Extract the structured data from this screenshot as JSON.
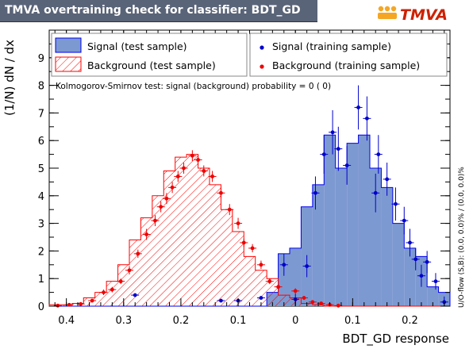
{
  "title": "TMVA overtraining check for classifier: BDT_GD",
  "logo_text": "TMVA",
  "colors": {
    "title_bg": "#5a6478",
    "signal_fill": "#7d99d1",
    "signal_line": "#0000ee",
    "background_line": "#ff0000",
    "signal_points": "#0000cc",
    "background_points": "#ee0000"
  },
  "ks_text": "Kolmogorov-Smirnov test: signal (background) probability =     0 (     0)",
  "overflow_text": "U/O-flow (S,B): (0.0, 0.0)% / (0.0, 0.0)%",
  "chart_data": {
    "type": "bar",
    "title": "TMVA overtraining check for classifier: BDT_GD",
    "xlabel": "BDT_GD response",
    "ylabel": "(1/N) dN / dx",
    "xlim": [
      -0.43,
      0.27
    ],
    "ylim": [
      0,
      10
    ],
    "x_reversed": true,
    "x_ticks": [
      -0.4,
      -0.3,
      -0.2,
      -0.1,
      0,
      0.1,
      0.2
    ],
    "x_tick_labels": [
      "0.4",
      "0.3",
      "0.2",
      "0.1",
      "0",
      "0.1",
      "0.2"
    ],
    "y_ticks": [
      0,
      1,
      2,
      3,
      4,
      5,
      6,
      7,
      8,
      9
    ],
    "bin_edges": [
      -0.43,
      -0.41,
      -0.39,
      -0.37,
      -0.35,
      -0.33,
      -0.31,
      -0.29,
      -0.27,
      -0.25,
      -0.23,
      -0.21,
      -0.19,
      -0.17,
      -0.15,
      -0.13,
      -0.11,
      -0.09,
      -0.07,
      -0.05,
      -0.03,
      -0.01,
      0.01,
      0.03,
      0.05,
      0.07,
      0.09,
      0.11,
      0.13,
      0.15,
      0.17,
      0.19,
      0.21,
      0.23,
      0.25,
      0.27
    ],
    "legend": [
      {
        "label": "Signal (test sample)",
        "style": "filled"
      },
      {
        "label": "Background (test sample)",
        "style": "hatched"
      },
      {
        "label": "Signal (training sample)",
        "style": "points-blue"
      },
      {
        "label": "Background (training sample)",
        "style": "points-red"
      }
    ],
    "legend_placement": "top",
    "series": [
      {
        "name": "Signal (test sample)",
        "values": [
          0,
          0,
          0,
          0,
          0,
          0,
          0,
          0,
          0,
          0,
          0,
          0,
          0,
          0,
          0,
          0,
          0,
          0,
          0,
          0.5,
          1.9,
          2.1,
          3.6,
          4.4,
          6.2,
          5.0,
          5.9,
          6.2,
          5.0,
          4.3,
          3.0,
          2.1,
          1.8,
          0.7,
          0.5
        ]
      },
      {
        "name": "Background (test sample)",
        "values": [
          0.05,
          0.05,
          0.1,
          0.3,
          0.5,
          0.9,
          1.5,
          2.4,
          3.2,
          4.0,
          4.9,
          5.4,
          5.5,
          5.0,
          4.4,
          3.5,
          2.7,
          1.8,
          1.3,
          1.0,
          0.4,
          0.3,
          0.1,
          0.05,
          0,
          0,
          0,
          0,
          0,
          0,
          0,
          0,
          0,
          0,
          0
        ]
      },
      {
        "name": "Signal (training sample)",
        "points": [
          {
            "x": -0.28,
            "y": 0.4,
            "e": 0.0
          },
          {
            "x": -0.13,
            "y": 0.2,
            "e": 0.0
          },
          {
            "x": -0.1,
            "y": 0.2,
            "e": 0.0
          },
          {
            "x": -0.06,
            "y": 0.3,
            "e": 0.0
          },
          {
            "x": 0.0,
            "y": 0.25,
            "e": 0.2
          },
          {
            "x": -0.02,
            "y": 1.5,
            "e": 0.4
          },
          {
            "x": 0.02,
            "y": 1.45,
            "e": 0.4
          },
          {
            "x": 0.035,
            "y": 4.1,
            "e": 0.6
          },
          {
            "x": 0.05,
            "y": 5.5,
            "e": 0.7
          },
          {
            "x": 0.065,
            "y": 6.3,
            "e": 0.8
          },
          {
            "x": 0.075,
            "y": 5.7,
            "e": 0.8
          },
          {
            "x": 0.09,
            "y": 5.1,
            "e": 0.7
          },
          {
            "x": 0.11,
            "y": 7.2,
            "e": 0.8
          },
          {
            "x": 0.125,
            "y": 6.8,
            "e": 0.8
          },
          {
            "x": 0.14,
            "y": 4.1,
            "e": 0.7
          },
          {
            "x": 0.145,
            "y": 5.5,
            "e": 0.7
          },
          {
            "x": 0.16,
            "y": 4.6,
            "e": 0.6
          },
          {
            "x": 0.175,
            "y": 3.7,
            "e": 0.6
          },
          {
            "x": 0.19,
            "y": 3.1,
            "e": 0.5
          },
          {
            "x": 0.2,
            "y": 2.3,
            "e": 0.5
          },
          {
            "x": 0.21,
            "y": 1.7,
            "e": 0.4
          },
          {
            "x": 0.22,
            "y": 1.1,
            "e": 0.4
          },
          {
            "x": 0.23,
            "y": 1.6,
            "e": 0.4
          },
          {
            "x": 0.245,
            "y": 0.9,
            "e": 0.3
          },
          {
            "x": 0.26,
            "y": 0.15,
            "e": 0.2
          }
        ]
      },
      {
        "name": "Background (training sample)",
        "points": [
          {
            "x": -0.415,
            "y": 0.02,
            "e": 0.0
          },
          {
            "x": -0.395,
            "y": 0.05,
            "e": 0.0
          },
          {
            "x": -0.375,
            "y": 0.08,
            "e": 0.0
          },
          {
            "x": -0.355,
            "y": 0.2,
            "e": 0.05
          },
          {
            "x": -0.335,
            "y": 0.5,
            "e": 0.1
          },
          {
            "x": -0.32,
            "y": 0.6,
            "e": 0.1
          },
          {
            "x": -0.305,
            "y": 0.9,
            "e": 0.1
          },
          {
            "x": -0.29,
            "y": 1.3,
            "e": 0.15
          },
          {
            "x": -0.275,
            "y": 1.9,
            "e": 0.15
          },
          {
            "x": -0.26,
            "y": 2.6,
            "e": 0.2
          },
          {
            "x": -0.245,
            "y": 3.1,
            "e": 0.2
          },
          {
            "x": -0.235,
            "y": 3.6,
            "e": 0.2
          },
          {
            "x": -0.225,
            "y": 3.9,
            "e": 0.2
          },
          {
            "x": -0.215,
            "y": 4.3,
            "e": 0.2
          },
          {
            "x": -0.205,
            "y": 4.7,
            "e": 0.2
          },
          {
            "x": -0.195,
            "y": 5.0,
            "e": 0.2
          },
          {
            "x": -0.18,
            "y": 5.45,
            "e": 0.2
          },
          {
            "x": -0.17,
            "y": 5.3,
            "e": 0.2
          },
          {
            "x": -0.16,
            "y": 4.9,
            "e": 0.2
          },
          {
            "x": -0.145,
            "y": 4.7,
            "e": 0.2
          },
          {
            "x": -0.13,
            "y": 4.1,
            "e": 0.2
          },
          {
            "x": -0.115,
            "y": 3.5,
            "e": 0.2
          },
          {
            "x": -0.1,
            "y": 3.0,
            "e": 0.2
          },
          {
            "x": -0.09,
            "y": 2.3,
            "e": 0.15
          },
          {
            "x": -0.075,
            "y": 2.1,
            "e": 0.15
          },
          {
            "x": -0.06,
            "y": 1.5,
            "e": 0.15
          },
          {
            "x": -0.045,
            "y": 0.9,
            "e": 0.1
          },
          {
            "x": -0.03,
            "y": 0.7,
            "e": 0.1
          },
          {
            "x": 0.0,
            "y": 0.55,
            "e": 0.1
          },
          {
            "x": 0.015,
            "y": 0.3,
            "e": 0.05
          },
          {
            "x": 0.03,
            "y": 0.15,
            "e": 0.05
          },
          {
            "x": 0.045,
            "y": 0.1,
            "e": 0.05
          },
          {
            "x": 0.06,
            "y": 0.05,
            "e": 0.0
          },
          {
            "x": 0.075,
            "y": 0.02,
            "e": 0.0
          }
        ]
      }
    ]
  }
}
